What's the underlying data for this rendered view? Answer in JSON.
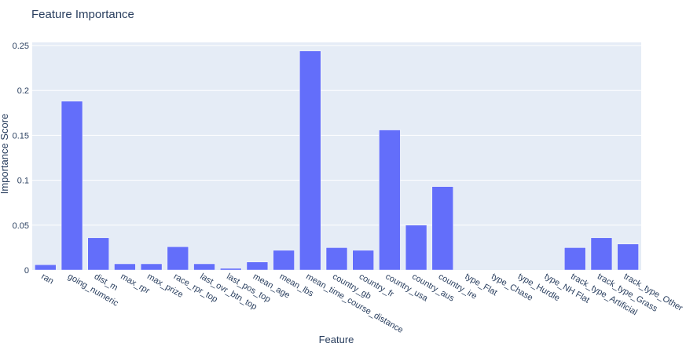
{
  "chart_data": {
    "type": "bar",
    "title": "Feature Importance",
    "xlabel": "Feature",
    "ylabel": "Importance Score",
    "ylim": [
      0,
      0.25
    ],
    "yticks": [
      0,
      0.05,
      0.1,
      0.15,
      0.2,
      0.25
    ],
    "ytick_labels": [
      "0",
      "0.05",
      "0.1",
      "0.15",
      "0.2",
      "0.25"
    ],
    "grid": true,
    "bar_color": "#636efa",
    "plot_bg": "#e5ecf6",
    "categories": [
      "ran",
      "going_numeric",
      "dist_m",
      "max_rpr",
      "max_prize",
      "race_rpr_top",
      "last_ovr_btn_top",
      "last_pos_top",
      "mean_age",
      "mean_lbs",
      "mean_time_course_distance",
      "country_gb",
      "country_fr",
      "country_usa",
      "country_aus",
      "country_ire",
      "type_Flat",
      "type_Chase",
      "type_Hurdle",
      "type_NH Flat",
      "track_type_Artificial",
      "track_type_Grass",
      "track_type_Other"
    ],
    "values": [
      0.006,
      0.188,
      0.036,
      0.007,
      0.007,
      0.026,
      0.007,
      0.002,
      0.009,
      0.022,
      0.244,
      0.025,
      0.022,
      0.156,
      0.05,
      0.093,
      0.0,
      0.0,
      0.0,
      0.0,
      0.025,
      0.036,
      0.029
    ]
  }
}
